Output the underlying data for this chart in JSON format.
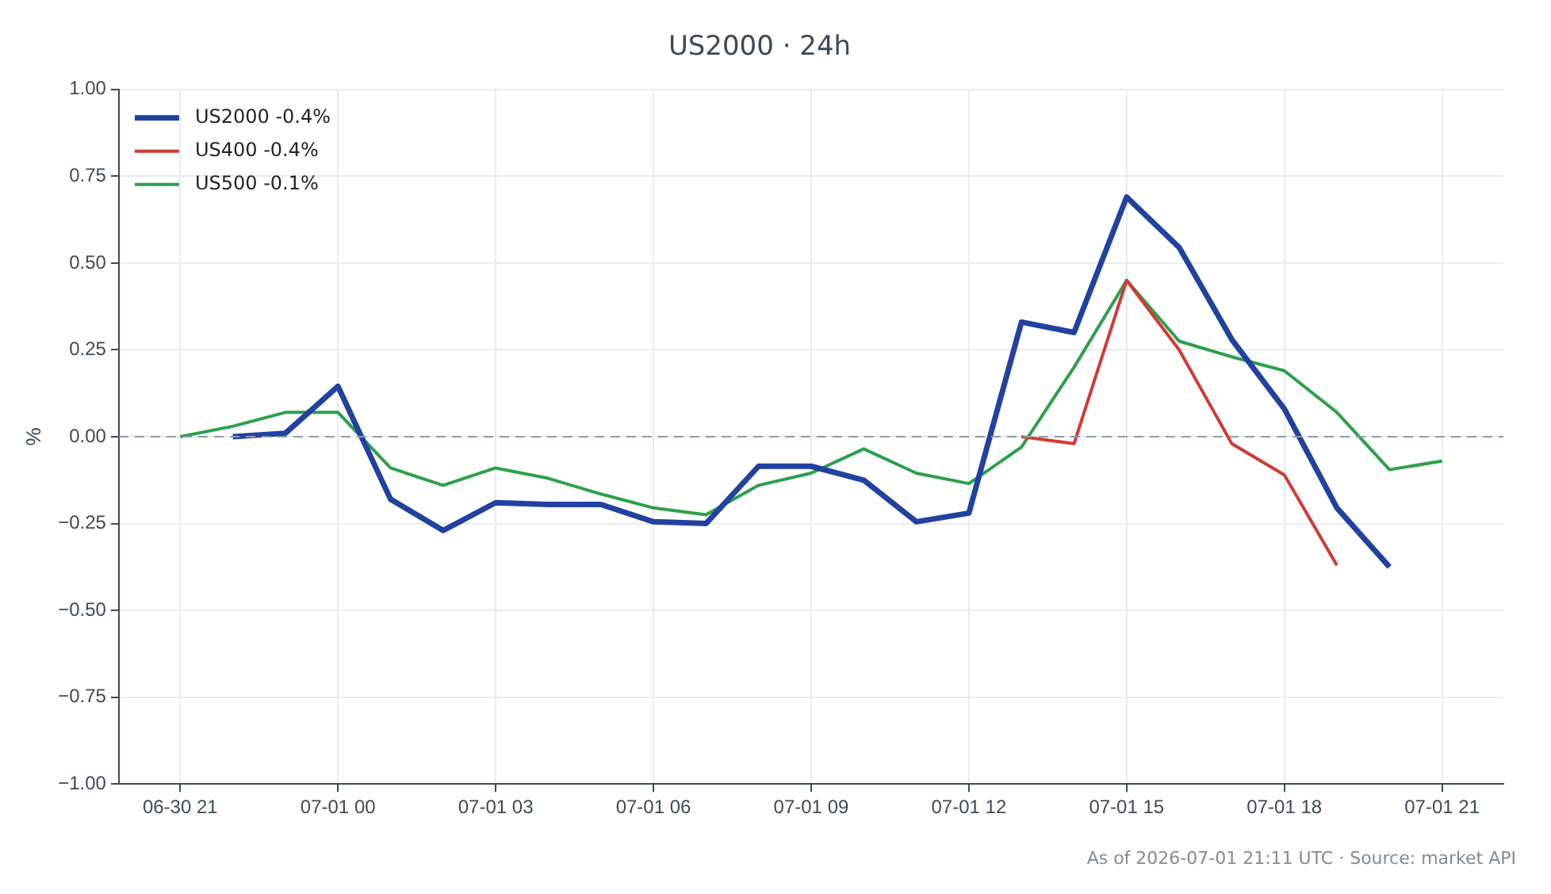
{
  "chart_data": {
    "type": "line",
    "title": "US2000 · 24h",
    "ylabel": "%",
    "series": [
      {
        "name": "US2000 -0.4%",
        "color": "#2241a0",
        "x": [
          "2026-06-30T22:00",
          "2026-06-30T23:00",
          "2026-07-01T00:00",
          "2026-07-01T01:00",
          "2026-07-01T02:00",
          "2026-07-01T03:00",
          "2026-07-01T04:00",
          "2026-07-01T05:00",
          "2026-07-01T06:00",
          "2026-07-01T07:00",
          "2026-07-01T08:00",
          "2026-07-01T09:00",
          "2026-07-01T10:00",
          "2026-07-01T11:00",
          "2026-07-01T12:00",
          "2026-07-01T13:00",
          "2026-07-01T14:00",
          "2026-07-01T15:00",
          "2026-07-01T16:00",
          "2026-07-01T17:00",
          "2026-07-01T18:00",
          "2026-07-01T19:00",
          "2026-07-01T20:00"
        ],
        "values": [
          0,
          0.01,
          0.145,
          -0.18,
          -0.27,
          -0.19,
          -0.195,
          -0.195,
          -0.245,
          -0.25,
          -0.085,
          -0.085,
          -0.125,
          -0.245,
          -0.22,
          0.33,
          0.3,
          0.69,
          0.545,
          0.28,
          0.08,
          -0.205,
          -0.375
        ]
      },
      {
        "name": "US400 -0.4%",
        "color": "#d03a35",
        "x": [
          "2026-07-01T13:00",
          "2026-07-01T14:00",
          "2026-07-01T15:00",
          "2026-07-01T16:00",
          "2026-07-01T17:00",
          "2026-07-01T18:00",
          "2026-07-01T19:00"
        ],
        "values": [
          0,
          -0.02,
          0.45,
          0.25,
          -0.02,
          -0.11,
          -0.37
        ]
      },
      {
        "name": "US500 -0.1%",
        "color": "#2ca04c",
        "x": [
          "2026-06-30T21:00",
          "2026-06-30T22:00",
          "2026-06-30T23:00",
          "2026-07-01T00:00",
          "2026-07-01T01:00",
          "2026-07-01T02:00",
          "2026-07-01T03:00",
          "2026-07-01T04:00",
          "2026-07-01T05:00",
          "2026-07-01T06:00",
          "2026-07-01T07:00",
          "2026-07-01T08:00",
          "2026-07-01T09:00",
          "2026-07-01T10:00",
          "2026-07-01T11:00",
          "2026-07-01T12:00",
          "2026-07-01T13:00",
          "2026-07-01T14:00",
          "2026-07-01T15:00",
          "2026-07-01T16:00",
          "2026-07-01T17:00",
          "2026-07-01T18:00",
          "2026-07-01T19:00",
          "2026-07-01T20:00",
          "2026-07-01T21:00"
        ],
        "values": [
          0,
          0.03,
          0.07,
          0.07,
          -0.09,
          -0.14,
          -0.09,
          -0.12,
          -0.165,
          -0.205,
          -0.225,
          -0.14,
          -0.105,
          -0.035,
          -0.105,
          -0.135,
          -0.03,
          0.2,
          0.45,
          0.275,
          0.23,
          0.19,
          0.07,
          -0.095,
          -0.07
        ]
      }
    ],
    "xlim": [
      "2026-06-30T19:50",
      "2026-07-01T22:10"
    ],
    "xticks": [
      {
        "value": "2026-06-30T21:00",
        "label": "06-30 21"
      },
      {
        "value": "2026-07-01T00:00",
        "label": "07-01 00"
      },
      {
        "value": "2026-07-01T03:00",
        "label": "07-01 03"
      },
      {
        "value": "2026-07-01T06:00",
        "label": "07-01 06"
      },
      {
        "value": "2026-07-01T09:00",
        "label": "07-01 09"
      },
      {
        "value": "2026-07-01T12:00",
        "label": "07-01 12"
      },
      {
        "value": "2026-07-01T15:00",
        "label": "07-01 15"
      },
      {
        "value": "2026-07-01T18:00",
        "label": "07-01 18"
      },
      {
        "value": "2026-07-01T21:00",
        "label": "07-01 21"
      }
    ],
    "ylim": [
      -1,
      1
    ],
    "yticks": [
      {
        "value": -1,
        "label": "−1.00"
      },
      {
        "value": -0.75,
        "label": "−0.75"
      },
      {
        "value": -0.5,
        "label": "−0.50"
      },
      {
        "value": -0.25,
        "label": "−0.25"
      },
      {
        "value": 0,
        "label": "0.00"
      },
      {
        "value": 0.25,
        "label": "0.25"
      },
      {
        "value": 0.5,
        "label": "0.50"
      },
      {
        "value": 0.75,
        "label": "0.75"
      },
      {
        "value": 1,
        "label": "1.00"
      }
    ],
    "ref_lines": [
      {
        "axis": "y",
        "value": 0,
        "color": "#8a9bab",
        "line_style": "dashed"
      }
    ],
    "grid": true,
    "legend": "top left",
    "marker": "none",
    "line_style": "solid",
    "annotations": [
      "As of 2026-07-01 21:11 UTC · Source: market API"
    ]
  }
}
